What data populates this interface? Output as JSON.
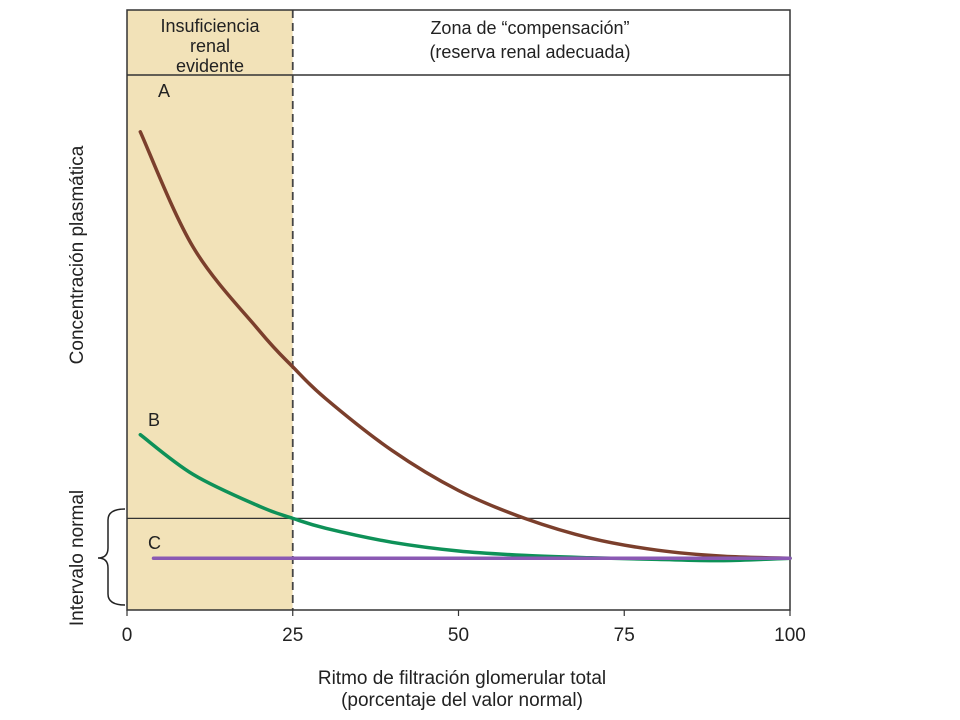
{
  "chart_data": {
    "type": "line",
    "xlim": [
      0,
      100
    ],
    "x_ticks": [
      0,
      25,
      50,
      75,
      100
    ],
    "x_tick_labels": [
      "0",
      "25",
      "50",
      "75",
      "100"
    ],
    "xlabel": [
      "Ritmo de filtración glomerular total",
      "(porcentaje del valor normal)"
    ],
    "ylabel": "Concentración plasmática",
    "y_range_label": "Intervalo normal",
    "zones": [
      {
        "name": "insufficiency",
        "x_range": [
          0,
          25
        ],
        "label": [
          "Insuficiencia",
          "renal",
          "evidente"
        ],
        "color": "#f2e2b8"
      },
      {
        "name": "compensation",
        "x_range": [
          25,
          100
        ],
        "label": [
          "Zona de “compensación”",
          "(reserva renal adecuada)"
        ],
        "color": "#ffffff"
      }
    ],
    "normal_range_upper": 2.3,
    "series": [
      {
        "name": "A",
        "color": "#7b3f2c",
        "points": [
          [
            2,
            12.0
          ],
          [
            10,
            9.1
          ],
          [
            20,
            7.0
          ],
          [
            25,
            6.1
          ],
          [
            30,
            5.3
          ],
          [
            40,
            4.0
          ],
          [
            50,
            3.0
          ],
          [
            60,
            2.3
          ],
          [
            70,
            1.8
          ],
          [
            80,
            1.5
          ],
          [
            90,
            1.35
          ],
          [
            100,
            1.3
          ]
        ]
      },
      {
        "name": "B",
        "color": "#0e9158",
        "points": [
          [
            2,
            4.4
          ],
          [
            10,
            3.4
          ],
          [
            20,
            2.6
          ],
          [
            25,
            2.3
          ],
          [
            30,
            2.05
          ],
          [
            40,
            1.7
          ],
          [
            50,
            1.48
          ],
          [
            60,
            1.37
          ],
          [
            70,
            1.31
          ],
          [
            80,
            1.27
          ],
          [
            90,
            1.24
          ],
          [
            100,
            1.3
          ]
        ]
      },
      {
        "name": "C",
        "color": "#8a59b3",
        "points": [
          [
            4,
            1.3
          ],
          [
            100,
            1.3
          ]
        ]
      }
    ]
  }
}
